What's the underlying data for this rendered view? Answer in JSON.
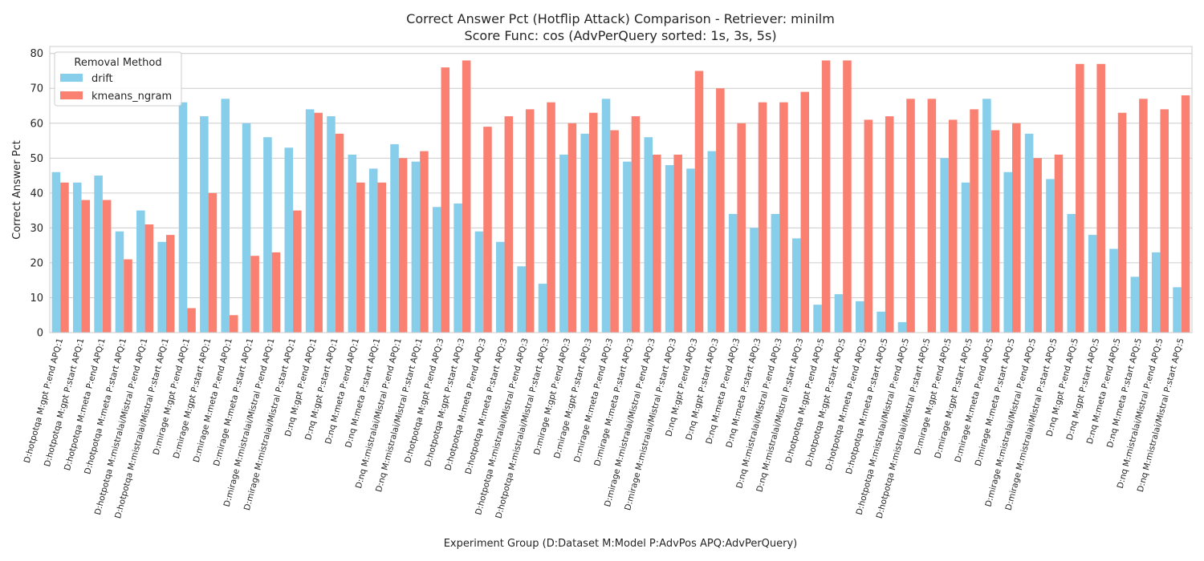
{
  "chart_data": {
    "type": "bar",
    "title_lines": [
      "Correct Answer Pct (Hotflip Attack) Comparison - Retriever: minilm",
      "Score Func: cos (AdvPerQuery sorted: 1s, 3s, 5s)"
    ],
    "xlabel": "Experiment Group (D:Dataset M:Model P:AdvPos APQ:AdvPerQuery)",
    "ylabel": "Correct Answer Pct",
    "ylim": [
      0,
      82
    ],
    "yticks": [
      0,
      10,
      20,
      30,
      40,
      50,
      60,
      70,
      80
    ],
    "grid": true,
    "legend": {
      "title": "Removal Method",
      "position": "top-left"
    },
    "categories": [
      "D:hotpotqa M:gpt P:end APQ:1",
      "D:hotpotqa M:gpt P:start APQ:1",
      "D:hotpotqa M:meta P:end APQ:1",
      "D:hotpotqa M:meta P:start APQ:1",
      "D:hotpotqa M:mistralai/Mistral P:end APQ:1",
      "D:hotpotqa M:mistralai/Mistral P:start APQ:1",
      "D:mirage M:gpt P:end APQ:1",
      "D:mirage M:gpt P:start APQ:1",
      "D:mirage M:meta P:end APQ:1",
      "D:mirage M:meta P:start APQ:1",
      "D:mirage M:mistralai/Mistral P:end APQ:1",
      "D:mirage M:mistralai/Mistral P:start APQ:1",
      "D:nq M:gpt P:end APQ:1",
      "D:nq M:gpt P:start APQ:1",
      "D:nq M:meta P:end APQ:1",
      "D:nq M:meta P:start APQ:1",
      "D:nq M:mistralai/Mistral P:end APQ:1",
      "D:nq M:mistralai/Mistral P:start APQ:1",
      "D:hotpotqa M:gpt P:end APQ:3",
      "D:hotpotqa M:gpt P:start APQ:3",
      "D:hotpotqa M:meta P:end APQ:3",
      "D:hotpotqa M:meta P:start APQ:3",
      "D:hotpotqa M:mistralai/Mistral P:end APQ:3",
      "D:hotpotqa M:mistralai/Mistral P:start APQ:3",
      "D:mirage M:gpt P:end APQ:3",
      "D:mirage M:gpt P:start APQ:3",
      "D:mirage M:meta P:end APQ:3",
      "D:mirage M:meta P:start APQ:3",
      "D:mirage M:mistralai/Mistral P:end APQ:3",
      "D:mirage M:mistralai/Mistral P:start APQ:3",
      "D:nq M:gpt P:end APQ:3",
      "D:nq M:gpt P:start APQ:3",
      "D:nq M:meta P:end APQ:3",
      "D:nq M:meta P:start APQ:3",
      "D:nq M:mistralai/Mistral P:end APQ:3",
      "D:nq M:mistralai/Mistral P:start APQ:3",
      "D:hotpotqa M:gpt P:end APQ:5",
      "D:hotpotqa M:gpt P:start APQ:5",
      "D:hotpotqa M:meta P:end APQ:5",
      "D:hotpotqa M:meta P:start APQ:5",
      "D:hotpotqa M:mistralai/Mistral P:end APQ:5",
      "D:hotpotqa M:mistralai/Mistral P:start APQ:5",
      "D:mirage M:gpt P:end APQ:5",
      "D:mirage M:gpt P:start APQ:5",
      "D:mirage M:meta P:end APQ:5",
      "D:mirage M:meta P:start APQ:5",
      "D:mirage M:mistralai/Mistral P:end APQ:5",
      "D:mirage M:mistralai/Mistral P:start APQ:5",
      "D:nq M:gpt P:end APQ:5",
      "D:nq M:gpt P:start APQ:5",
      "D:nq M:meta P:end APQ:5",
      "D:nq M:meta P:start APQ:5",
      "D:nq M:mistralai/Mistral P:end APQ:5",
      "D:nq M:mistralai/Mistral P:start APQ:5"
    ],
    "series": [
      {
        "name": "drift",
        "color": "#87ceeb",
        "values": [
          46,
          43,
          45,
          29,
          35,
          26,
          66,
          62,
          67,
          60,
          56,
          53,
          64,
          62,
          51,
          47,
          54,
          49,
          36,
          37,
          29,
          26,
          19,
          14,
          51,
          57,
          67,
          49,
          56,
          48,
          47,
          52,
          34,
          30,
          34,
          27,
          8,
          11,
          9,
          6,
          3,
          0,
          50,
          43,
          67,
          46,
          57,
          44,
          34,
          28,
          24,
          16,
          23,
          13
        ]
      },
      {
        "name": "kmeans_ngram",
        "color": "#fa8072",
        "values": [
          43,
          38,
          38,
          21,
          31,
          28,
          7,
          40,
          5,
          22,
          23,
          35,
          63,
          57,
          43,
          43,
          50,
          52,
          76,
          78,
          59,
          62,
          64,
          66,
          60,
          63,
          58,
          62,
          51,
          51,
          75,
          70,
          60,
          66,
          66,
          69,
          78,
          78,
          61,
          62,
          67,
          67,
          61,
          64,
          58,
          60,
          50,
          51,
          77,
          77,
          63,
          67,
          64,
          68
        ]
      }
    ]
  }
}
